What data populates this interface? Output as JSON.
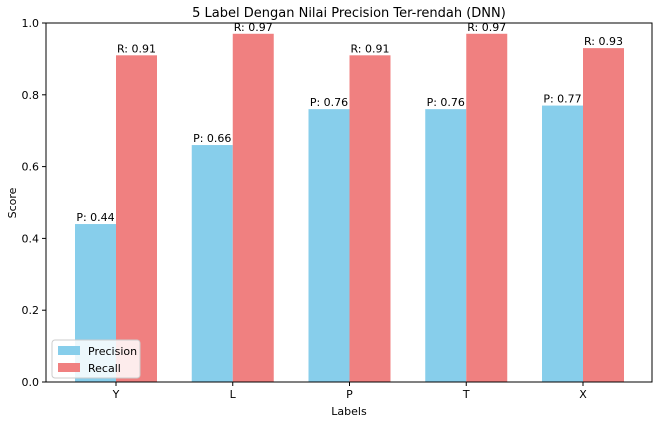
{
  "chart_data": {
    "type": "bar",
    "title": "5 Label Dengan Nilai Precision Ter-rendah (DNN)",
    "xlabel": "Labels",
    "ylabel": "Score",
    "categories": [
      "Y",
      "L",
      "P",
      "T",
      "X"
    ],
    "ylim": [
      0,
      1.0
    ],
    "yticks": [
      "0.0",
      "0.2",
      "0.4",
      "0.6",
      "0.8",
      "1.0"
    ],
    "grid": false,
    "legend_position": "lower-left",
    "series": [
      {
        "name": "Precision",
        "color": "#87ceeb",
        "values": [
          0.44,
          0.66,
          0.76,
          0.76,
          0.77
        ],
        "labels": [
          "P: 0.44",
          "P: 0.66",
          "P: 0.76",
          "P: 0.76",
          "P: 0.77"
        ]
      },
      {
        "name": "Recall",
        "color": "#f08080",
        "values": [
          0.91,
          0.97,
          0.91,
          0.97,
          0.93
        ],
        "labels": [
          "R: 0.91",
          "R: 0.97",
          "R: 0.91",
          "R: 0.97",
          "R: 0.93"
        ]
      }
    ]
  }
}
